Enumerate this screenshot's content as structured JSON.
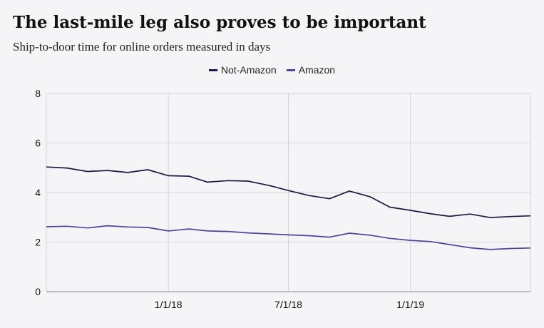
{
  "title": "The last-mile leg also proves to be important",
  "subtitle": "Ship-to-door time for online orders measured in days",
  "colors": {
    "not_amazon": "#1c1a45",
    "amazon": "#4b469c",
    "grid": "#d5d5d8",
    "axis": "#9a9a9a",
    "background": "#f5f5f7"
  },
  "chart_data": {
    "type": "line",
    "x": [
      "2017-07-01",
      "2017-08-01",
      "2017-09-01",
      "2017-10-01",
      "2017-11-01",
      "2017-12-01",
      "2018-01-01",
      "2018-02-01",
      "2018-03-01",
      "2018-04-01",
      "2018-05-01",
      "2018-06-01",
      "2018-07-01",
      "2018-08-01",
      "2018-09-01",
      "2018-10-01",
      "2018-11-01",
      "2018-12-01",
      "2019-01-01",
      "2019-02-01",
      "2019-03-01",
      "2019-04-01",
      "2019-05-01",
      "2019-06-01",
      "2019-07-01"
    ],
    "x_ticks": [
      {
        "date": "2018-01-01",
        "label": "1/1/18"
      },
      {
        "date": "2018-07-01",
        "label": "7/1/18"
      },
      {
        "date": "2019-01-01",
        "label": "1/1/19"
      }
    ],
    "xlim": [
      "2017-07-01",
      "2019-07-01"
    ],
    "y_ticks": [
      0,
      2,
      4,
      6,
      8
    ],
    "ylim": [
      0,
      8
    ],
    "grid": true,
    "legend_position": "top-center",
    "series": [
      {
        "name": "Not-Amazon",
        "values": [
          5.03,
          4.99,
          4.85,
          4.89,
          4.81,
          4.92,
          4.68,
          4.66,
          4.42,
          4.48,
          4.46,
          4.29,
          4.08,
          3.88,
          3.75,
          4.06,
          3.83,
          3.41,
          3.28,
          3.14,
          3.04,
          3.13,
          2.99,
          3.03,
          3.06
        ]
      },
      {
        "name": "Amazon",
        "values": [
          2.62,
          2.64,
          2.57,
          2.66,
          2.61,
          2.59,
          2.45,
          2.53,
          2.45,
          2.43,
          2.37,
          2.33,
          2.29,
          2.26,
          2.2,
          2.36,
          2.28,
          2.15,
          2.07,
          2.02,
          1.9,
          1.77,
          1.7,
          1.74,
          1.76
        ]
      }
    ]
  }
}
